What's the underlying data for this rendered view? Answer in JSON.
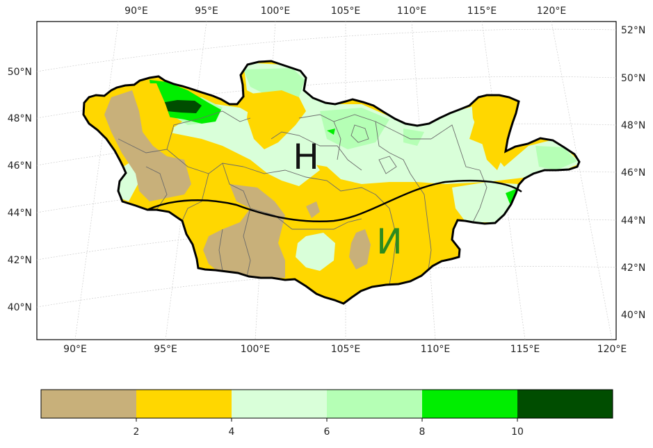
{
  "map": {
    "top_lon_labels": [
      "90°E",
      "95°E",
      "100°E",
      "105°E",
      "110°E",
      "115°E",
      "120°E"
    ],
    "bottom_lon_labels": [
      "90°E",
      "95°E",
      "100°E",
      "105°E",
      "110°E",
      "115°E",
      "120°E"
    ],
    "left_lat_labels": [
      "50°N",
      "48°N",
      "46°N",
      "44°N",
      "42°N",
      "40°N"
    ],
    "right_lat_labels": [
      "52°N",
      "50°N",
      "48°N",
      "46°N",
      "44°N",
      "42°N",
      "40°N"
    ],
    "region_label_north": "Н",
    "region_label_south": "И",
    "region_label_north_color": "#111111",
    "region_label_south_color": "#2e8b1e"
  },
  "colorbar": {
    "colors": [
      "#c8b07a",
      "#ffd700",
      "#d9ffd9",
      "#b5ffb5",
      "#00ee00",
      "#004d00"
    ],
    "tick_labels": [
      "2",
      "4",
      "6",
      "8",
      "10"
    ]
  }
}
